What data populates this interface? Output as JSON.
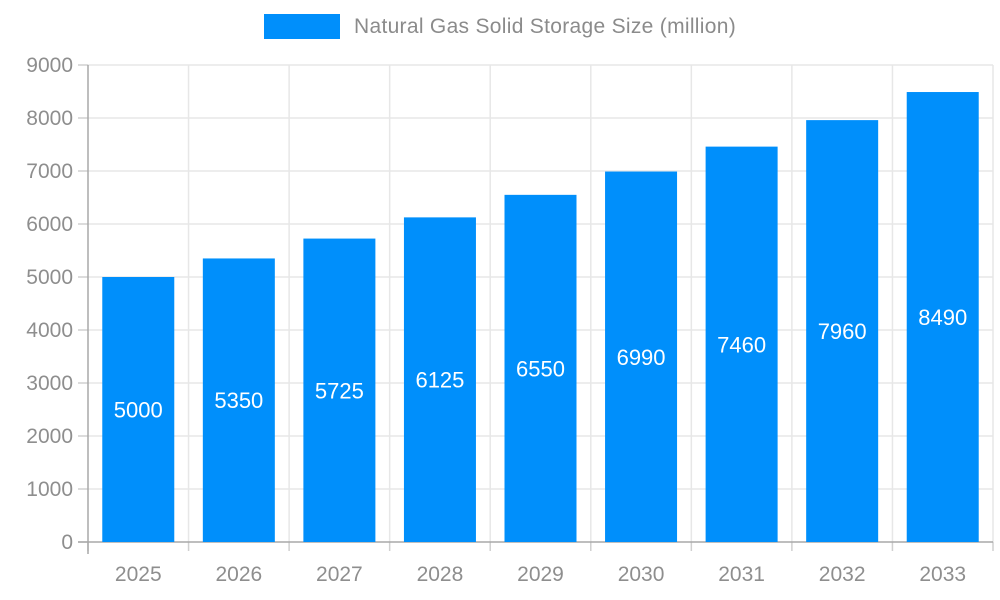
{
  "chart_data": {
    "type": "bar",
    "title": "Natural Gas Solid Storage Size (million)",
    "categories": [
      "2025",
      "2026",
      "2027",
      "2028",
      "2029",
      "2030",
      "2031",
      "2032",
      "2033"
    ],
    "series": [
      {
        "name": "Natural Gas Solid Storage Size (million)",
        "values": [
          5000,
          5350,
          5725,
          6125,
          6550,
          6990,
          7460,
          7960,
          8490
        ]
      }
    ],
    "xlabel": "",
    "ylabel": "",
    "ylim": [
      0,
      9000
    ],
    "ytick_step": 1000,
    "grid": true,
    "legend_position": "top",
    "data_labels": "white, centered in bars"
  },
  "legend": {
    "label": "Natural Gas Solid Storage Size (million)"
  },
  "colors": {
    "bar": "#008FFB",
    "bar_label": "#ffffff",
    "axis_text": "#8e8e8e",
    "legend_text": "#8b8b8b",
    "grid_line": "#e7e7e7",
    "axis_line": "#a8a8a8",
    "tick_line": "#d0d0d0",
    "background": "#ffffff"
  }
}
